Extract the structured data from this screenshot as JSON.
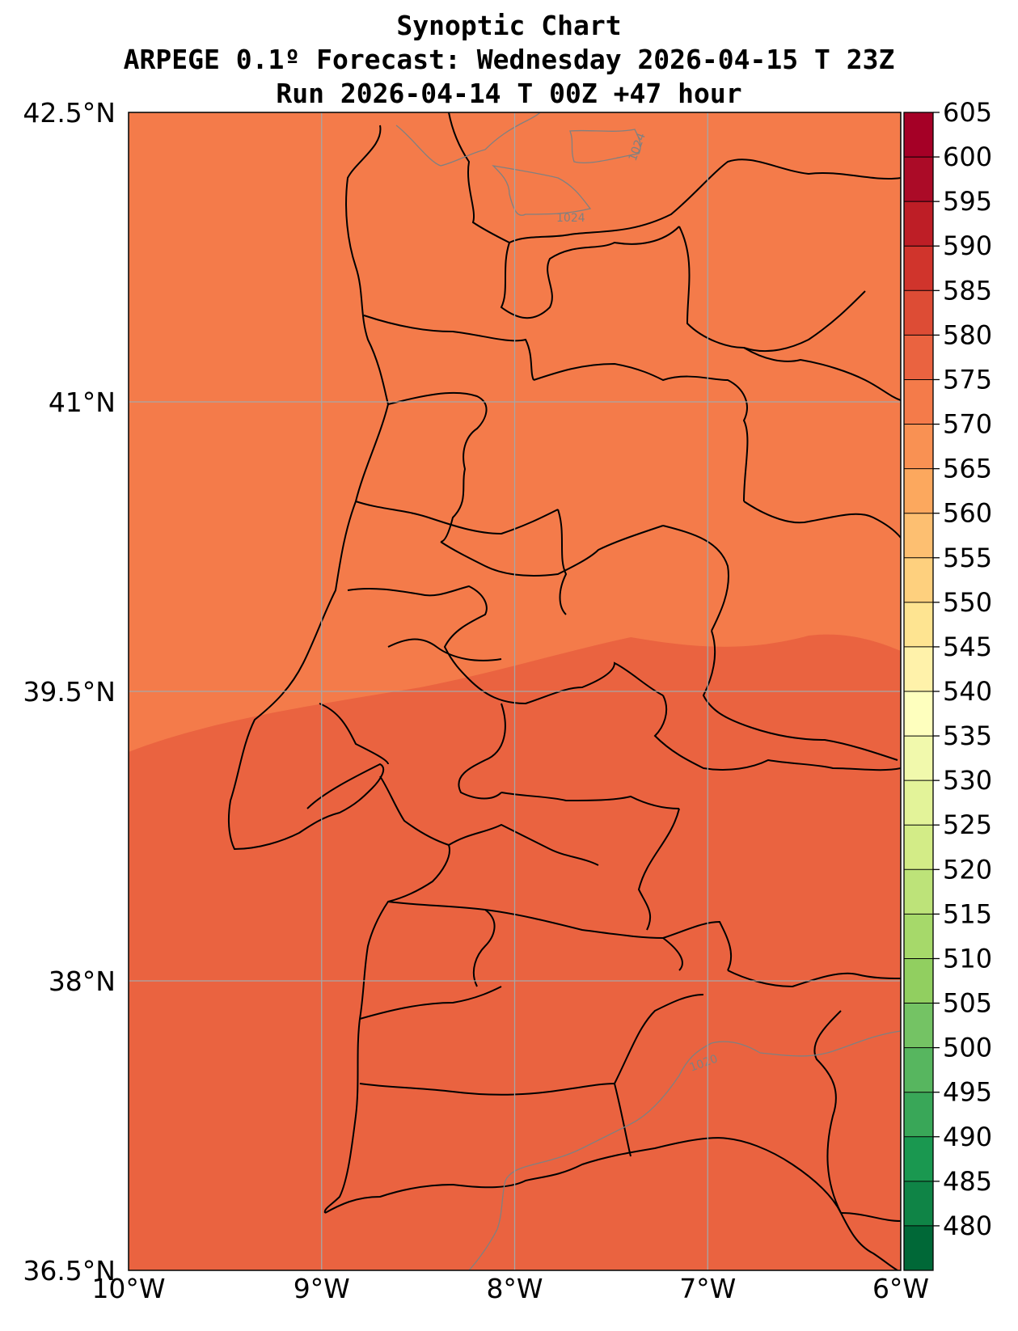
{
  "title": {
    "line1": "Synoptic Chart",
    "line2": "ARPEGE 0.1º Forecast: Wednesday 2026-04-15 T 23Z",
    "line3": "Run 2026-04-14 T 00Z +47 hour"
  },
  "map": {
    "lon_range": [
      -10,
      -6
    ],
    "lat_range": [
      36.5,
      42.5
    ],
    "gridlines": true,
    "x_ticks": [
      {
        "value": -10,
        "label": "10°W"
      },
      {
        "value": -9,
        "label": "9°W"
      },
      {
        "value": -8,
        "label": "8°W"
      },
      {
        "value": -7,
        "label": "7°W"
      },
      {
        "value": -6,
        "label": "6°W"
      }
    ],
    "y_ticks": [
      {
        "value": 42.5,
        "label": "42.5°N"
      },
      {
        "value": 41,
        "label": "41°N"
      },
      {
        "value": 39.5,
        "label": "39.5°N"
      },
      {
        "value": 38,
        "label": "38°N"
      },
      {
        "value": 36.5,
        "label": "36.5°N"
      }
    ],
    "fill_regions": [
      {
        "range": "575-580",
        "color": "#f47b4a"
      },
      {
        "range": "580-585",
        "color": "#ea6340"
      }
    ],
    "isobar_labels": [
      "1024",
      "1024",
      "1020"
    ]
  },
  "colorbar": {
    "levels": [
      480,
      485,
      490,
      495,
      500,
      505,
      510,
      515,
      520,
      525,
      530,
      535,
      540,
      545,
      550,
      555,
      560,
      565,
      570,
      575,
      580,
      585,
      590,
      595,
      600,
      605
    ],
    "colors": [
      "#006837",
      "#0f8446",
      "#1a9850",
      "#39a758",
      "#57b65f",
      "#74c364",
      "#91cf60",
      "#a6d96a",
      "#bde379",
      "#d3ec87",
      "#e3f399",
      "#f1f9ac",
      "#feffbe",
      "#fff2aa",
      "#fee491",
      "#fed07e",
      "#fdbf71",
      "#fca85e",
      "#f99153",
      "#f47b4a",
      "#ea6340",
      "#dd4c35",
      "#d0342c",
      "#be1e26",
      "#ab0b27",
      "#a50026"
    ]
  }
}
